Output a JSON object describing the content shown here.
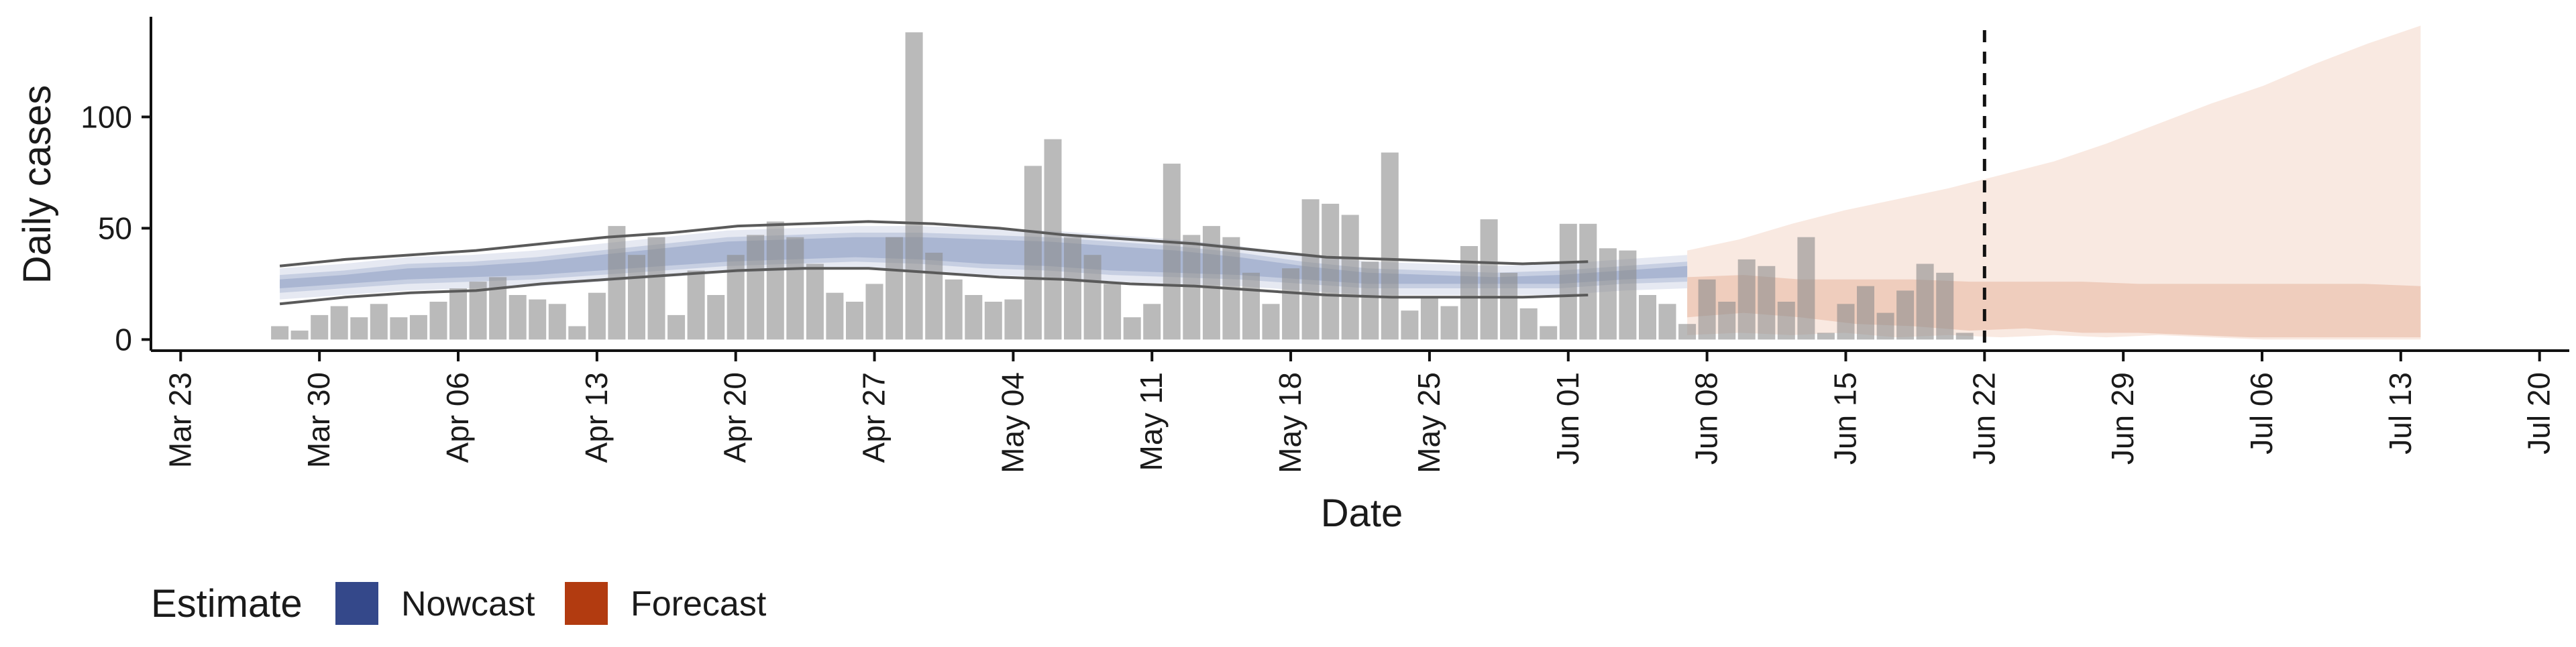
{
  "chart_data": {
    "type": "bar",
    "xlabel": "Date",
    "ylabel": "Daily cases",
    "y_ticks": [
      0,
      50,
      100
    ],
    "ylim": [
      -5,
      145
    ],
    "x_ticks": [
      "Mar 23",
      "Mar 30",
      "Apr 06",
      "Apr 13",
      "Apr 20",
      "Apr 27",
      "May 04",
      "May 11",
      "May 18",
      "May 25",
      "Jun 01",
      "Jun 08",
      "Jun 15",
      "Jun 22",
      "Jun 29",
      "Jul 06",
      "Jul 13",
      "Jul 20"
    ],
    "xlim_days": [
      -1.5,
      120.5
    ],
    "bar_start_date": "Mar 28",
    "bars": [
      6,
      4,
      11,
      15,
      10,
      16,
      10,
      11,
      17,
      23,
      26,
      28,
      20,
      18,
      16,
      6,
      21,
      51,
      38,
      46,
      11,
      31,
      20,
      38,
      47,
      53,
      46,
      34,
      21,
      17,
      25,
      46,
      138,
      39,
      27,
      20,
      17,
      18,
      78,
      90,
      46,
      38,
      25,
      10,
      16,
      79,
      47,
      51,
      46,
      30,
      16,
      32,
      63,
      61,
      56,
      35,
      84,
      13,
      19,
      15,
      42,
      54,
      30,
      14,
      6,
      52,
      52,
      41,
      40,
      20,
      16,
      7,
      27,
      17,
      36,
      33,
      17,
      46,
      3,
      16,
      24,
      12,
      22,
      34,
      30,
      3
    ],
    "vline_date": "Jun 22",
    "legend": {
      "title": "Estimate",
      "items": [
        {
          "label": "Nowcast",
          "color": "#34488a"
        },
        {
          "label": "Forecast",
          "color": "#b23b10"
        }
      ],
      "position": "bottom-left"
    },
    "nowcast": {
      "start": 5,
      "end": 76,
      "outer": [
        [
          32,
          18
        ],
        [
          34,
          20
        ],
        [
          37,
          22
        ],
        [
          38,
          23
        ],
        [
          40,
          24
        ],
        [
          43,
          26
        ],
        [
          46,
          28
        ],
        [
          49,
          30
        ],
        [
          50,
          31
        ],
        [
          51,
          32
        ],
        [
          51,
          31
        ],
        [
          50,
          29
        ],
        [
          49,
          28
        ],
        [
          47,
          26
        ],
        [
          45,
          25
        ],
        [
          42,
          24
        ],
        [
          38,
          22
        ],
        [
          35,
          20
        ],
        [
          34,
          20
        ],
        [
          33,
          20
        ],
        [
          34,
          20
        ],
        [
          36,
          22
        ],
        [
          38,
          23
        ]
      ],
      "inner_outer": [
        [
          29,
          21
        ],
        [
          31,
          23
        ],
        [
          34,
          25
        ],
        [
          35,
          26
        ],
        [
          37,
          27
        ],
        [
          40,
          29
        ],
        [
          43,
          31
        ],
        [
          46,
          33
        ],
        [
          47,
          34
        ],
        [
          48,
          35
        ],
        [
          48,
          34
        ],
        [
          47,
          32
        ],
        [
          46,
          31
        ],
        [
          44,
          29
        ],
        [
          42,
          28
        ],
        [
          39,
          27
        ],
        [
          35,
          25
        ],
        [
          32,
          23
        ],
        [
          31,
          23
        ],
        [
          30,
          23
        ],
        [
          31,
          23
        ],
        [
          33,
          25
        ],
        [
          35,
          26
        ]
      ],
      "inner": [
        [
          27,
          23
        ],
        [
          29,
          25
        ],
        [
          32,
          27
        ],
        [
          33,
          28
        ],
        [
          35,
          29
        ],
        [
          38,
          31
        ],
        [
          41,
          33
        ],
        [
          44,
          35
        ],
        [
          45,
          36
        ],
        [
          46,
          37
        ],
        [
          46,
          36
        ],
        [
          45,
          34
        ],
        [
          44,
          33
        ],
        [
          42,
          31
        ],
        [
          40,
          30
        ],
        [
          37,
          29
        ],
        [
          33,
          27
        ],
        [
          30,
          25
        ],
        [
          29,
          25
        ],
        [
          28,
          25
        ],
        [
          29,
          25
        ],
        [
          31,
          27
        ],
        [
          33,
          28
        ]
      ],
      "fit_line_upper_end": 71,
      "fit_line_upper": [
        33,
        36,
        38,
        40,
        43,
        46,
        48,
        51,
        52,
        53,
        52,
        50,
        47,
        45,
        43,
        40,
        37,
        36,
        35,
        34,
        35
      ],
      "fit_line_lower": [
        16,
        19,
        21,
        22,
        25,
        27,
        29,
        31,
        32,
        32,
        30,
        28,
        27,
        25,
        24,
        22,
        20,
        19,
        19,
        19,
        20
      ]
    },
    "forecast": {
      "start": 76,
      "end": 113,
      "outer": [
        [
          40,
          2
        ],
        [
          45,
          3
        ],
        [
          52,
          2
        ],
        [
          58,
          3
        ],
        [
          63,
          1
        ],
        [
          68,
          2
        ],
        [
          74,
          1
        ],
        [
          80,
          2
        ],
        [
          88,
          1
        ],
        [
          97,
          2
        ],
        [
          106,
          1
        ],
        [
          114,
          0
        ],
        [
          124,
          0
        ],
        [
          133,
          0
        ],
        [
          141,
          0
        ]
      ],
      "inner": [
        [
          28,
          10
        ],
        [
          29,
          12
        ],
        [
          27,
          10
        ],
        [
          27,
          7
        ],
        [
          27,
          6
        ],
        [
          26,
          4
        ],
        [
          26,
          5
        ],
        [
          26,
          3
        ],
        [
          25,
          3
        ],
        [
          25,
          2
        ],
        [
          25,
          1
        ],
        [
          25,
          1
        ],
        [
          25,
          1
        ],
        [
          24,
          1
        ]
      ]
    }
  }
}
